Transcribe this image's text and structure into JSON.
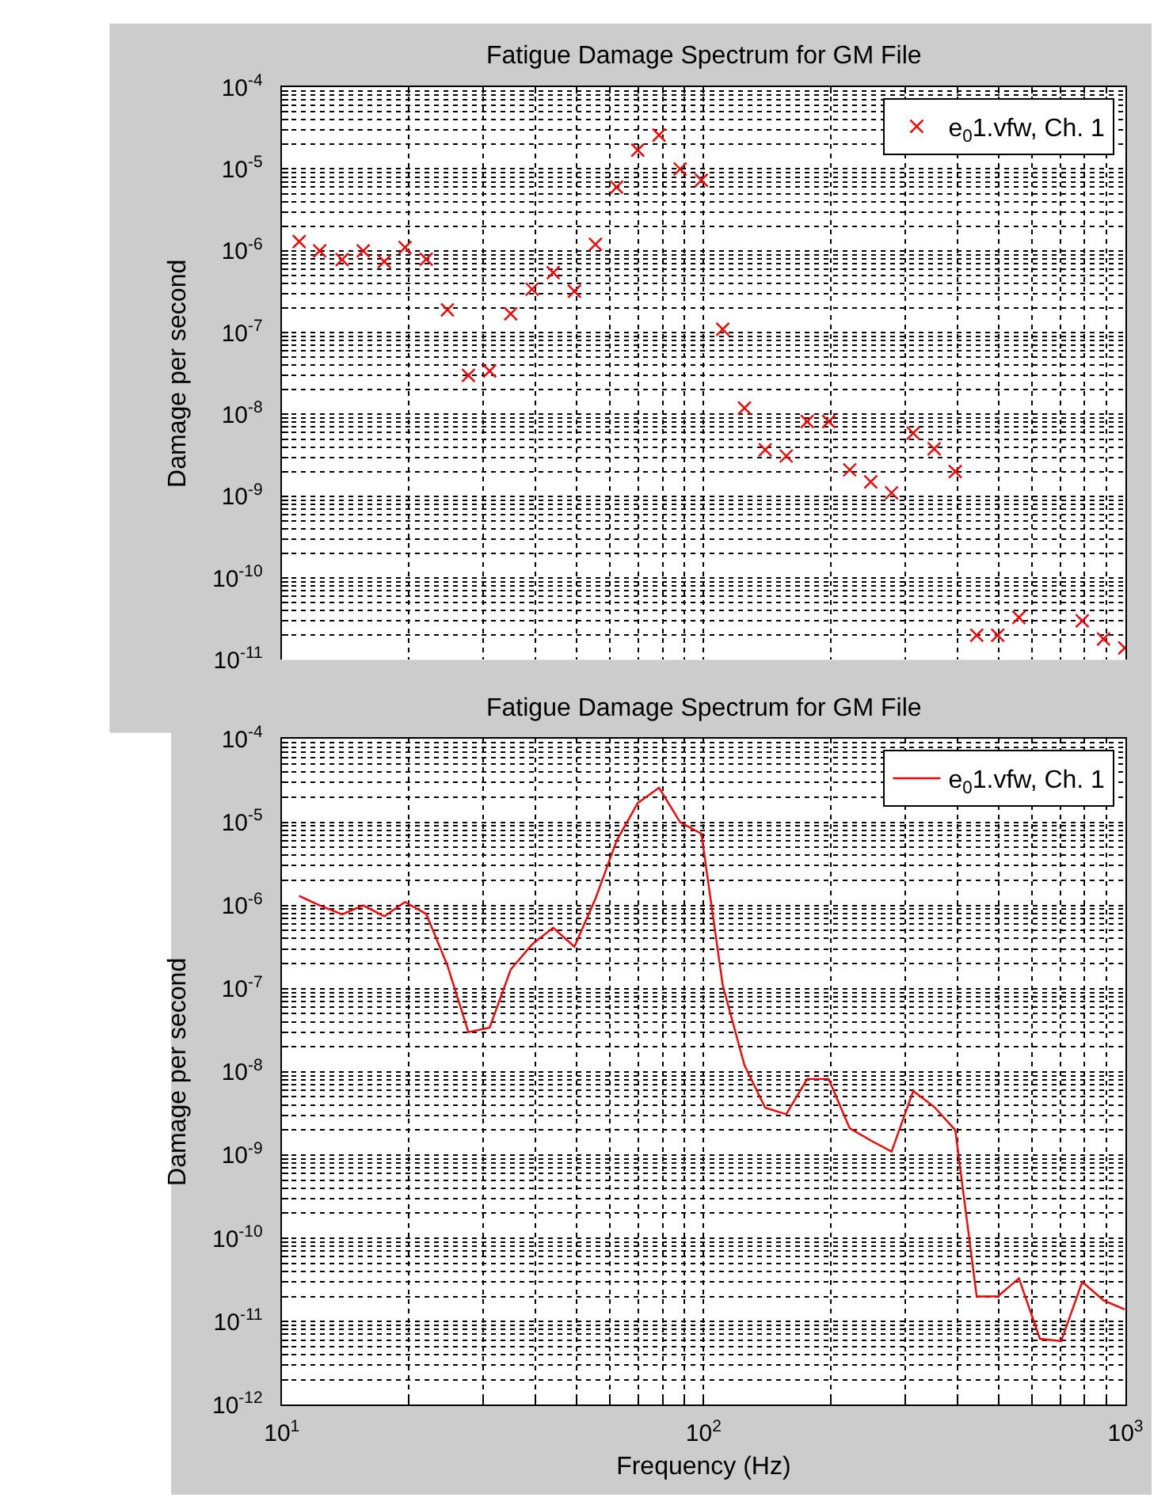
{
  "chart_data": [
    {
      "type": "scatter",
      "title": "Fatigue Damage Spectrum for GM File",
      "ylabel": "Damage per second",
      "x": [
        11.0,
        12.3,
        13.9,
        15.6,
        17.5,
        19.6,
        22.0,
        24.7,
        27.7,
        31.1,
        34.9,
        39.2,
        44.0,
        49.4,
        55.4,
        62.2,
        69.8,
        78.4,
        88.0,
        98.8,
        111,
        125,
        140,
        157,
        176,
        198,
        222,
        249,
        279,
        314,
        352,
        395,
        444,
        498,
        559,
        627,
        704,
        790,
        887,
        996
      ],
      "series": [
        {
          "name": "e$_{0}$1.vfw, Ch. 1",
          "color": "#ff0000",
          "values": [
            1.3e-06,
            1e-06,
            7.8e-07,
            1e-06,
            7.4e-07,
            1.1e-06,
            7.9e-07,
            1.9e-07,
            3e-08,
            3.4e-08,
            1.7e-07,
            3.4e-07,
            5.4e-07,
            3.2e-07,
            1.2e-06,
            6e-06,
            1.7e-05,
            2.6e-05,
            1e-05,
            7.3e-06,
            1.1e-07,
            1.2e-08,
            3.7e-09,
            3.1e-09,
            8.2e-09,
            8.2e-09,
            2.1e-09,
            1.5e-09,
            1.1e-09,
            5.9e-09,
            3.8e-09,
            2e-09,
            2e-11,
            2e-11,
            3.3e-11,
            null,
            null,
            3e-11,
            1.8e-11,
            1.4e-11
          ]
        }
      ],
      "xlim": [
        10,
        1000
      ],
      "ylim": [
        1e-11,
        0.0001
      ],
      "xticks": [
        {
          "value": 10,
          "label": null
        },
        {
          "value": 20,
          "label": null
        },
        {
          "value": 30,
          "label": null
        },
        {
          "value": 40,
          "label": null
        },
        {
          "value": 50,
          "label": null
        },
        {
          "value": 60,
          "label": null
        },
        {
          "value": 70,
          "label": null
        },
        {
          "value": 80,
          "label": null
        },
        {
          "value": 90,
          "label": null
        },
        {
          "value": 100,
          "label": null
        },
        {
          "value": 200,
          "label": null
        },
        {
          "value": 300,
          "label": null
        },
        {
          "value": 400,
          "label": null
        },
        {
          "value": 500,
          "label": null
        },
        {
          "value": 600,
          "label": null
        },
        {
          "value": 700,
          "label": null
        },
        {
          "value": 800,
          "label": null
        },
        {
          "value": 900,
          "label": null
        },
        {
          "value": 1000,
          "label": null
        }
      ],
      "yticks": [
        {
          "value": 1e-11,
          "label": "10$^{-11}$"
        },
        {
          "value": 2e-11,
          "label": null
        },
        {
          "value": 3e-11,
          "label": null
        },
        {
          "value": 4e-11,
          "label": null
        },
        {
          "value": 5e-11,
          "label": null
        },
        {
          "value": 6e-11,
          "label": null
        },
        {
          "value": 7e-11,
          "label": null
        },
        {
          "value": 8e-11,
          "label": null
        },
        {
          "value": 9e-11,
          "label": null
        },
        {
          "value": 1e-10,
          "label": "10$^{-10}$"
        },
        {
          "value": 2e-10,
          "label": null
        },
        {
          "value": 3e-10,
          "label": null
        },
        {
          "value": 4e-10,
          "label": null
        },
        {
          "value": 5e-10,
          "label": null
        },
        {
          "value": 6e-10,
          "label": null
        },
        {
          "value": 7e-10,
          "label": null
        },
        {
          "value": 8e-10,
          "label": null
        },
        {
          "value": 9e-10,
          "label": null
        },
        {
          "value": 1e-09,
          "label": "10$^{-9}$"
        },
        {
          "value": 2e-09,
          "label": null
        },
        {
          "value": 3e-09,
          "label": null
        },
        {
          "value": 4e-09,
          "label": null
        },
        {
          "value": 5e-09,
          "label": null
        },
        {
          "value": 6e-09,
          "label": null
        },
        {
          "value": 7e-09,
          "label": null
        },
        {
          "value": 8e-09,
          "label": null
        },
        {
          "value": 9e-09,
          "label": null
        },
        {
          "value": 1e-08,
          "label": "10$^{-8}$"
        },
        {
          "value": 2e-08,
          "label": null
        },
        {
          "value": 3e-08,
          "label": null
        },
        {
          "value": 4e-08,
          "label": null
        },
        {
          "value": 5e-08,
          "label": null
        },
        {
          "value": 6e-08,
          "label": null
        },
        {
          "value": 7e-08,
          "label": null
        },
        {
          "value": 8e-08,
          "label": null
        },
        {
          "value": 9e-08,
          "label": null
        },
        {
          "value": 1e-07,
          "label": "10$^{-7}$"
        },
        {
          "value": 2e-07,
          "label": null
        },
        {
          "value": 3e-07,
          "label": null
        },
        {
          "value": 4e-07,
          "label": null
        },
        {
          "value": 5e-07,
          "label": null
        },
        {
          "value": 6e-07,
          "label": null
        },
        {
          "value": 7e-07,
          "label": null
        },
        {
          "value": 8e-07,
          "label": null
        },
        {
          "value": 9e-07,
          "label": null
        },
        {
          "value": 1e-06,
          "label": "10$^{-6}$"
        },
        {
          "value": 2e-06,
          "label": null
        },
        {
          "value": 3e-06,
          "label": null
        },
        {
          "value": 4e-06,
          "label": null
        },
        {
          "value": 5e-06,
          "label": null
        },
        {
          "value": 6e-06,
          "label": null
        },
        {
          "value": 7e-06,
          "label": null
        },
        {
          "value": 8e-06,
          "label": null
        },
        {
          "value": 9e-06,
          "label": null
        },
        {
          "value": 1e-05,
          "label": "10$^{-5}$"
        },
        {
          "value": 2e-05,
          "label": null
        },
        {
          "value": 3e-05,
          "label": null
        },
        {
          "value": 4e-05,
          "label": null
        },
        {
          "value": 5e-05,
          "label": null
        },
        {
          "value": 6e-05,
          "label": null
        },
        {
          "value": 7e-05,
          "label": null
        },
        {
          "value": 8e-05,
          "label": null
        },
        {
          "value": 9e-05,
          "label": null
        },
        {
          "value": 0.0001,
          "label": "10$^{-4}$"
        }
      ],
      "log": "xy",
      "grid": true,
      "legend": "top right",
      "marker": "cross",
      "tick_labels": "y"
    },
    {
      "type": "line",
      "title": "Fatigue Damage Spectrum for GM File",
      "xlabel": "Frequency (Hz)",
      "ylabel": "Damage per second",
      "x": [
        11.0,
        12.3,
        13.9,
        15.6,
        17.5,
        19.6,
        22.0,
        24.7,
        27.7,
        31.1,
        34.9,
        39.2,
        44.0,
        49.4,
        55.4,
        62.2,
        69.8,
        78.4,
        88.0,
        98.8,
        111,
        125,
        140,
        157,
        176,
        198,
        222,
        249,
        279,
        314,
        352,
        395,
        444,
        498,
        559,
        627,
        704,
        790,
        887,
        996
      ],
      "series": [
        {
          "name": "e$_{0}$1.vfw, Ch. 1",
          "color": "#ff0000",
          "values": [
            1.3e-06,
            1e-06,
            7.8e-07,
            1e-06,
            7.4e-07,
            1.1e-06,
            7.9e-07,
            1.9e-07,
            3e-08,
            3.4e-08,
            1.7e-07,
            3.4e-07,
            5.4e-07,
            3.2e-07,
            1.2e-06,
            6e-06,
            1.7e-05,
            2.6e-05,
            1e-05,
            7.3e-06,
            1.1e-07,
            1.2e-08,
            3.7e-09,
            3.1e-09,
            8.2e-09,
            8.2e-09,
            2.1e-09,
            1.5e-09,
            1.1e-09,
            5.9e-09,
            3.8e-09,
            2e-09,
            2e-11,
            2e-11,
            3.3e-11,
            6.2e-12,
            5.8e-12,
            3e-11,
            1.8e-11,
            1.4e-11
          ]
        }
      ],
      "xlim": [
        10,
        1000
      ],
      "ylim": [
        1e-12,
        0.0001
      ],
      "xticks": [
        {
          "value": 10,
          "label": "10$^{1}$"
        },
        {
          "value": 20,
          "label": null
        },
        {
          "value": 30,
          "label": null
        },
        {
          "value": 40,
          "label": null
        },
        {
          "value": 50,
          "label": null
        },
        {
          "value": 60,
          "label": null
        },
        {
          "value": 70,
          "label": null
        },
        {
          "value": 80,
          "label": null
        },
        {
          "value": 90,
          "label": null
        },
        {
          "value": 100,
          "label": "10$^{2}$"
        },
        {
          "value": 200,
          "label": null
        },
        {
          "value": 300,
          "label": null
        },
        {
          "value": 400,
          "label": null
        },
        {
          "value": 500,
          "label": null
        },
        {
          "value": 600,
          "label": null
        },
        {
          "value": 700,
          "label": null
        },
        {
          "value": 800,
          "label": null
        },
        {
          "value": 900,
          "label": null
        },
        {
          "value": 1000,
          "label": "10$^{3}$"
        }
      ],
      "yticks": [
        {
          "value": 1e-12,
          "label": "10$^{-12}$"
        },
        {
          "value": 2e-12,
          "label": null
        },
        {
          "value": 3e-12,
          "label": null
        },
        {
          "value": 4e-12,
          "label": null
        },
        {
          "value": 5e-12,
          "label": null
        },
        {
          "value": 6e-12,
          "label": null
        },
        {
          "value": 7e-12,
          "label": null
        },
        {
          "value": 8e-12,
          "label": null
        },
        {
          "value": 9e-12,
          "label": null
        },
        {
          "value": 1e-11,
          "label": "10$^{-11}$"
        },
        {
          "value": 2e-11,
          "label": null
        },
        {
          "value": 3e-11,
          "label": null
        },
        {
          "value": 4e-11,
          "label": null
        },
        {
          "value": 5e-11,
          "label": null
        },
        {
          "value": 6e-11,
          "label": null
        },
        {
          "value": 7e-11,
          "label": null
        },
        {
          "value": 8e-11,
          "label": null
        },
        {
          "value": 9e-11,
          "label": null
        },
        {
          "value": 1e-10,
          "label": "10$^{-10}$"
        },
        {
          "value": 2e-10,
          "label": null
        },
        {
          "value": 3e-10,
          "label": null
        },
        {
          "value": 4e-10,
          "label": null
        },
        {
          "value": 5e-10,
          "label": null
        },
        {
          "value": 6e-10,
          "label": null
        },
        {
          "value": 7e-10,
          "label": null
        },
        {
          "value": 8e-10,
          "label": null
        },
        {
          "value": 9e-10,
          "label": null
        },
        {
          "value": 1e-09,
          "label": "10$^{-9}$"
        },
        {
          "value": 2e-09,
          "label": null
        },
        {
          "value": 3e-09,
          "label": null
        },
        {
          "value": 4e-09,
          "label": null
        },
        {
          "value": 5e-09,
          "label": null
        },
        {
          "value": 6e-09,
          "label": null
        },
        {
          "value": 7e-09,
          "label": null
        },
        {
          "value": 8e-09,
          "label": null
        },
        {
          "value": 9e-09,
          "label": null
        },
        {
          "value": 1e-08,
          "label": "10$^{-8}$"
        },
        {
          "value": 2e-08,
          "label": null
        },
        {
          "value": 3e-08,
          "label": null
        },
        {
          "value": 4e-08,
          "label": null
        },
        {
          "value": 5e-08,
          "label": null
        },
        {
          "value": 6e-08,
          "label": null
        },
        {
          "value": 7e-08,
          "label": null
        },
        {
          "value": 8e-08,
          "label": null
        },
        {
          "value": 9e-08,
          "label": null
        },
        {
          "value": 1e-07,
          "label": "10$^{-7}$"
        },
        {
          "value": 2e-07,
          "label": null
        },
        {
          "value": 3e-07,
          "label": null
        },
        {
          "value": 4e-07,
          "label": null
        },
        {
          "value": 5e-07,
          "label": null
        },
        {
          "value": 6e-07,
          "label": null
        },
        {
          "value": 7e-07,
          "label": null
        },
        {
          "value": 8e-07,
          "label": null
        },
        {
          "value": 9e-07,
          "label": null
        },
        {
          "value": 1e-06,
          "label": "10$^{-6}$"
        },
        {
          "value": 2e-06,
          "label": null
        },
        {
          "value": 3e-06,
          "label": null
        },
        {
          "value": 4e-06,
          "label": null
        },
        {
          "value": 5e-06,
          "label": null
        },
        {
          "value": 6e-06,
          "label": null
        },
        {
          "value": 7e-06,
          "label": null
        },
        {
          "value": 8e-06,
          "label": null
        },
        {
          "value": 9e-06,
          "label": null
        },
        {
          "value": 1e-05,
          "label": "10$^{-5}$"
        },
        {
          "value": 2e-05,
          "label": null
        },
        {
          "value": 3e-05,
          "label": null
        },
        {
          "value": 4e-05,
          "label": null
        },
        {
          "value": 5e-05,
          "label": null
        },
        {
          "value": 6e-05,
          "label": null
        },
        {
          "value": 7e-05,
          "label": null
        },
        {
          "value": 8e-05,
          "label": null
        },
        {
          "value": 9e-05,
          "label": null
        },
        {
          "value": 0.0001,
          "label": "10$^{-4}$"
        }
      ],
      "log": "xy",
      "grid": true,
      "legend": "top right",
      "line_style": "solid"
    }
  ]
}
